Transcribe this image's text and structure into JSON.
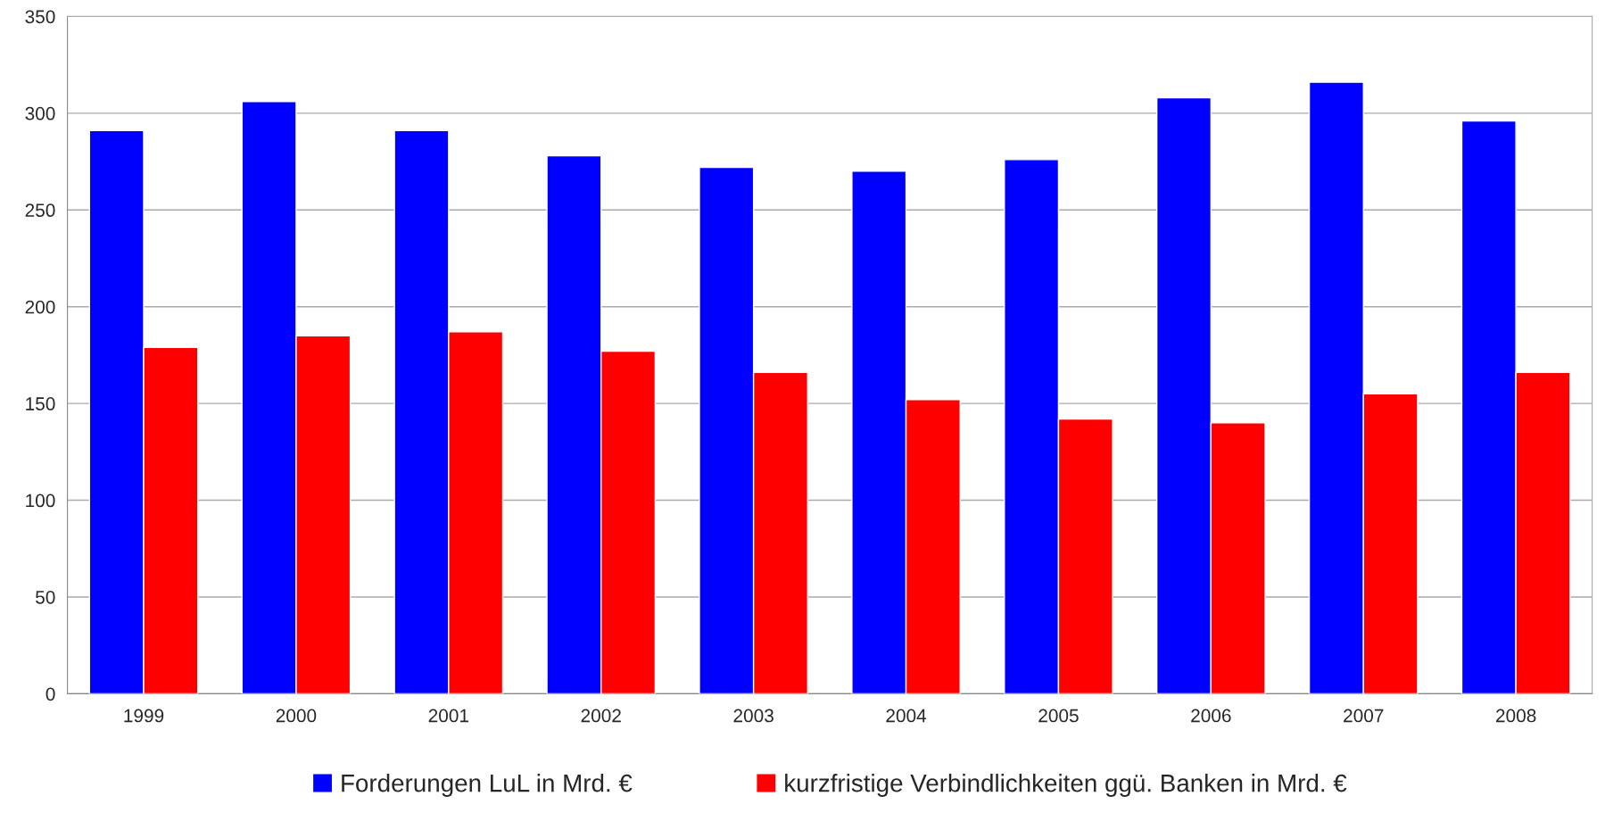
{
  "chart_data": {
    "type": "bar",
    "categories": [
      "1999",
      "2000",
      "2001",
      "2002",
      "2003",
      "2004",
      "2005",
      "2006",
      "2007",
      "2008"
    ],
    "series": [
      {
        "name": "Forderungen LuL in Mrd. €",
        "color": "#0000ff",
        "values": [
          291,
          306,
          291,
          278,
          272,
          270,
          276,
          308,
          316,
          296
        ]
      },
      {
        "name": "kurzfristige Verbindlichkeiten ggü. Banken in Mrd. €",
        "color": "#ff0000",
        "values": [
          179,
          185,
          187,
          177,
          166,
          152,
          142,
          140,
          155,
          166
        ]
      }
    ],
    "ylim": [
      0,
      350
    ],
    "yticks": [
      0,
      50,
      100,
      150,
      200,
      250,
      300,
      350
    ],
    "grid": "y",
    "legend": "bottom"
  }
}
